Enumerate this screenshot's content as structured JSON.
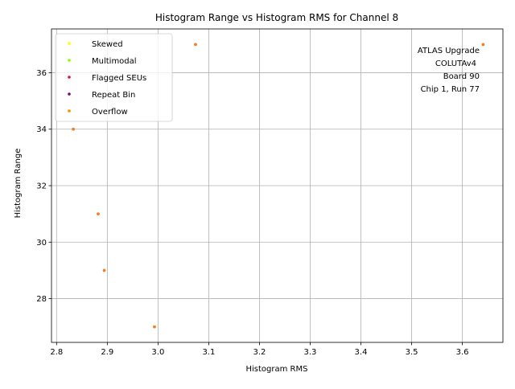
{
  "chart_data": {
    "type": "scatter",
    "title": "Histogram Range vs Histogram RMS for Channel 8",
    "xlabel": "Histogram RMS",
    "ylabel": "Histogram Range",
    "xlim": [
      2.79,
      3.68
    ],
    "ylim": [
      26.45,
      37.55
    ],
    "xticks": [
      "2.8",
      "2.9",
      "3.0",
      "3.1",
      "3.2",
      "3.3",
      "3.4",
      "3.5",
      "3.6"
    ],
    "yticks": [
      "28",
      "30",
      "32",
      "34",
      "36"
    ],
    "grid": true,
    "legend_position": "top-left",
    "series": [
      {
        "name": "Skewed",
        "color": "#ffff00",
        "points": []
      },
      {
        "name": "Multimodal",
        "color": "#7fff00",
        "points": []
      },
      {
        "name": "Flagged SEUs",
        "color": "#dc143c",
        "points": [
          [
            2.833,
            34
          ],
          [
            2.882,
            31
          ],
          [
            2.894,
            29
          ],
          [
            2.993,
            27
          ],
          [
            3.074,
            37
          ],
          [
            3.641,
            37
          ]
        ]
      },
      {
        "name": "Repeat Bin",
        "color": "#800080",
        "points": []
      },
      {
        "name": "Overflow",
        "color": "#ff8c00",
        "points": [
          [
            2.833,
            34
          ],
          [
            2.882,
            31
          ],
          [
            2.894,
            29
          ],
          [
            2.993,
            27
          ],
          [
            3.074,
            37
          ],
          [
            3.641,
            37
          ]
        ]
      }
    ],
    "annotation": [
      "ATLAS Upgrade",
      "COLUTAv4",
      "Board 90",
      "Chip 1, Run 77"
    ]
  }
}
